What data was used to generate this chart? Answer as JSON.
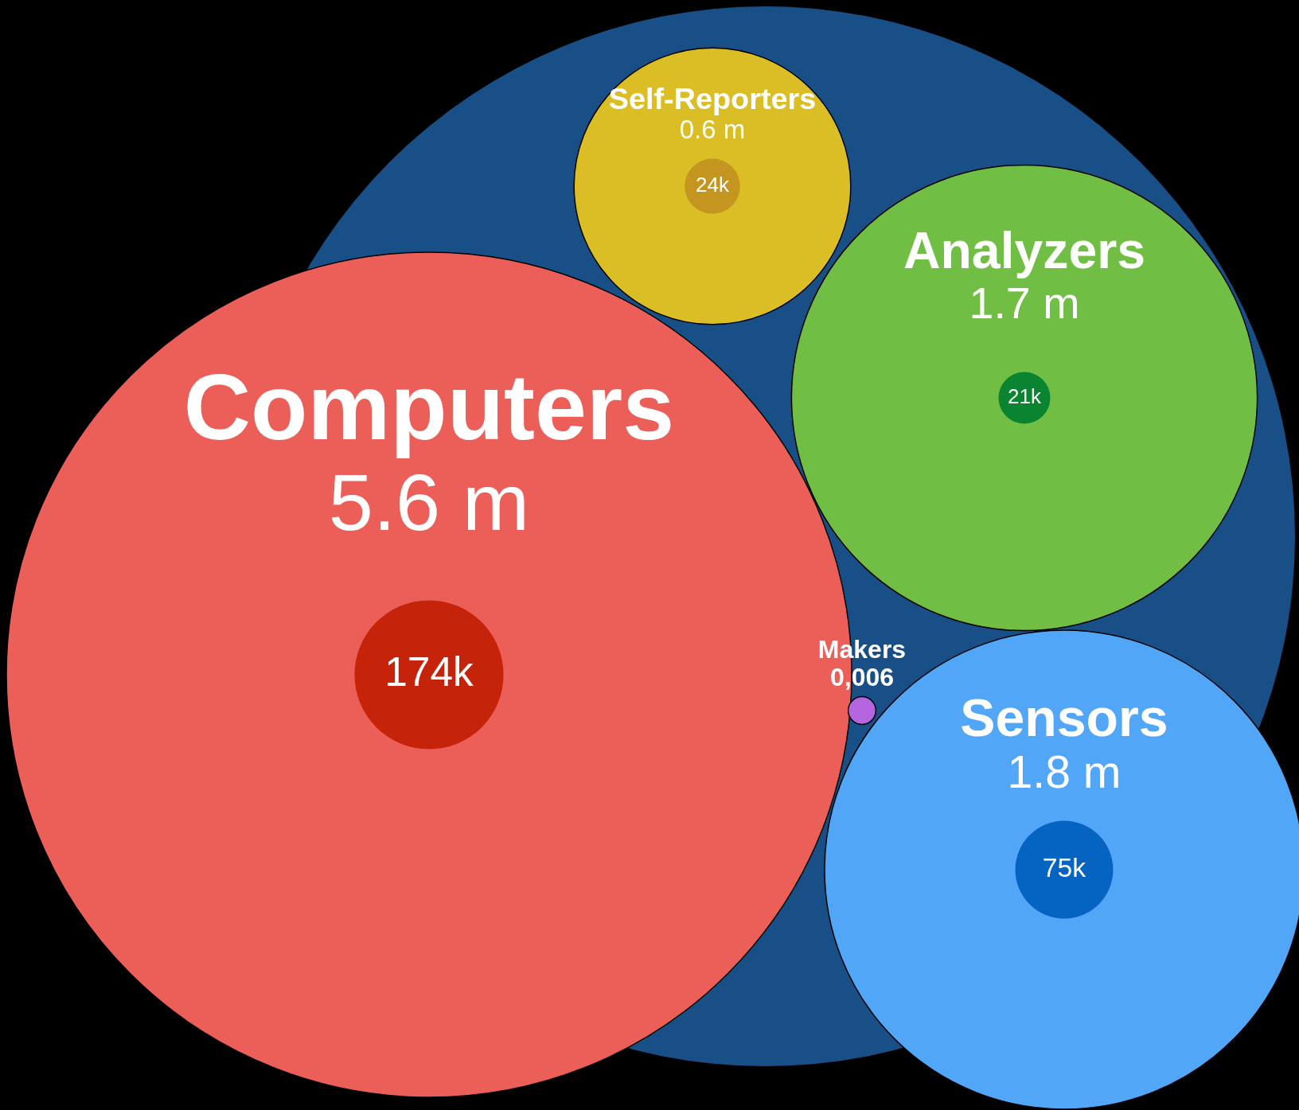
{
  "chart_data": {
    "type": "other",
    "categories": [
      "Computers",
      "Self-Reporters",
      "Analyzers",
      "Makers",
      "Sensors"
    ],
    "series": [
      {
        "values": [
          5.6,
          0.6,
          1.7,
          0.006,
          1.8
        ],
        "value_labels": [
          "5.6 m",
          "0.6 m",
          "1.7 m",
          "0,006",
          "1.8 m"
        ],
        "colors": [
          "#ec5f59",
          "#dbbd26",
          "#70bf44",
          "#b565e0",
          "#52a6f8"
        ]
      },
      {
        "values": [
          174,
          24,
          21,
          null,
          75
        ],
        "value_labels": [
          "174k",
          "24k",
          "21k",
          null,
          "75k"
        ],
        "colors": [
          "#c6240a",
          "#c4961f",
          "#0b8431",
          null,
          "#0563c1"
        ]
      }
    ]
  }
}
